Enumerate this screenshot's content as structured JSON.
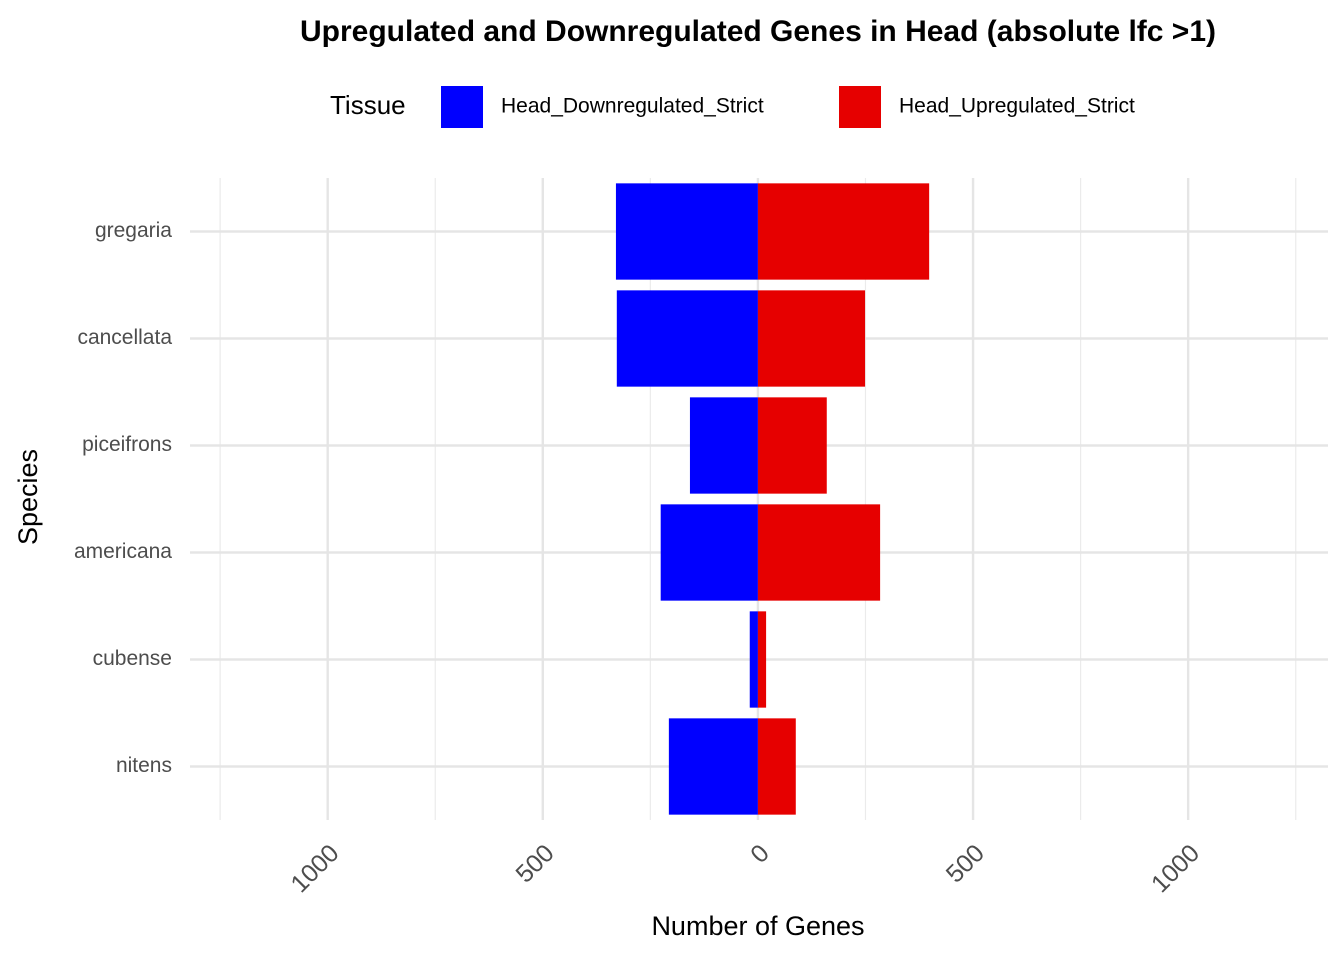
{
  "chart_data": {
    "type": "bar",
    "orientation": "horizontal",
    "title": "Upregulated and Downregulated Genes in Head (absolute lfc >1)",
    "x_label": "Number of Genes",
    "y_label": "Species",
    "legend_title": "Tissue",
    "categories": [
      "gregaria",
      "cancellata",
      "piceifrons",
      "americana",
      "cubense",
      "nitens"
    ],
    "series": [
      {
        "name": "Head_Downregulated_Strict",
        "color": "#0000ff",
        "values": [
          -330,
          -328,
          -158,
          -226,
          -19,
          -207
        ]
      },
      {
        "name": "Head_Upregulated_Strict",
        "color": "#e60000",
        "values": [
          398,
          249,
          160,
          284,
          19,
          88
        ]
      }
    ],
    "xlim": [
      -1320,
      1325
    ],
    "xticks": [
      {
        "value": -1000,
        "label": "1000"
      },
      {
        "value": -500,
        "label": "500"
      },
      0,
      500,
      1000
    ],
    "minor_xticks": [
      -1250,
      -750,
      -250,
      250,
      750,
      1250
    ],
    "grid": true
  }
}
